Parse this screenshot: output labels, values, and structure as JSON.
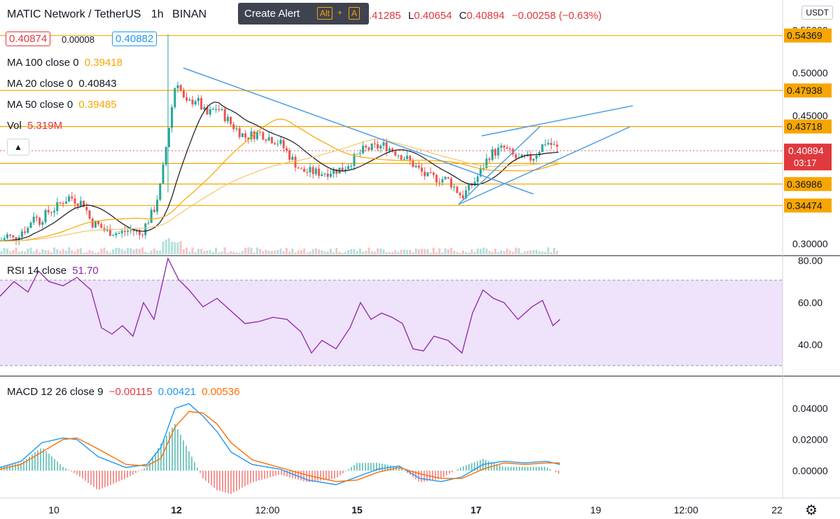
{
  "header": {
    "symbol": "MATIC Network / TetherUS",
    "interval": "1h",
    "exchange": "BINAN",
    "ohlc_visible": ".41285",
    "low_label": "L",
    "low_value": "0.40654",
    "close_label": "C",
    "close_value": "0.40894",
    "change": "−0.00258 (−0.63%)",
    "bid": "0.40874",
    "spread": "0.00008",
    "ask": "0.40882"
  },
  "toolbar": {
    "create_alert": "Create Alert",
    "shortcut_key1": "Alt",
    "shortcut_plus": "+",
    "shortcut_key2": "A",
    "currency": "USDT",
    "collapse_icon": "chevron-up-icon",
    "settings_icon": "gear-icon"
  },
  "indicators": {
    "ma100": {
      "label": "MA 100 close 0",
      "value": "0.39418",
      "color": "#f7a600"
    },
    "ma20": {
      "label": "MA 20 close 0",
      "value": "0.40843",
      "color": "#131722"
    },
    "ma50": {
      "label": "MA 50 close 0",
      "value": "0.39485",
      "color": "#f7a600"
    },
    "vol": {
      "label": "Vol",
      "value": "5.319M",
      "color": "#e0393e"
    },
    "rsi": {
      "label": "RSI 14 close",
      "value": "51.70",
      "color": "#8e24aa"
    },
    "macd": {
      "label": "MACD 12 26 close 9",
      "hist": "−0.00115",
      "macd": "0.00421",
      "signal": "0.00536"
    }
  },
  "colors": {
    "up": "#26a69a",
    "down": "#ef5350",
    "level": "#f7a600",
    "trendline": "#4e9ee2",
    "rsi_band": "#efe2fb",
    "macd_line": "#2196f3",
    "signal_line": "#ff6d00"
  },
  "price_axis": {
    "ticks": [
      "0.55000",
      "0.50000",
      "0.45000",
      "0.30000"
    ],
    "levels": [
      "0.54369",
      "0.47938",
      "0.43718",
      "0.39397",
      "0.36986",
      "0.34474"
    ],
    "current": {
      "price": "0.40894",
      "countdown": "03:17"
    }
  },
  "rsi_axis": {
    "ticks": [
      "80.00",
      "60.00",
      "40.00"
    ]
  },
  "macd_axis": {
    "ticks": [
      "0.04000",
      "0.02000",
      "0.00000"
    ]
  },
  "time_axis": {
    "labels": [
      "10",
      "12",
      "12:00",
      "15",
      "17",
      "19",
      "12:00",
      "22"
    ],
    "bold": [
      "12",
      "15",
      "17"
    ]
  },
  "chart_data": [
    {
      "type": "candlestick",
      "pair": "MATIC Network / TetherUS",
      "price_range": [
        0.28,
        0.56
      ],
      "x": [
        0,
        10,
        20,
        30,
        40,
        48,
        50,
        55,
        60,
        70,
        80,
        90,
        100,
        110,
        120,
        130,
        140,
        150,
        160,
        170,
        180,
        190,
        200,
        210,
        220,
        230,
        240,
        252,
        265,
        280,
        295,
        310,
        330,
        350,
        370,
        400,
        430,
        460,
        490,
        520,
        550,
        580,
        610,
        640,
        660,
        680,
        700,
        720,
        740,
        760,
        780,
        800
      ],
      "close": [
        0.303,
        0.31,
        0.305,
        0.315,
        0.318,
        0.335,
        0.333,
        0.325,
        0.33,
        0.338,
        0.342,
        0.35,
        0.355,
        0.35,
        0.347,
        0.325,
        0.322,
        0.315,
        0.314,
        0.312,
        0.315,
        0.316,
        0.31,
        0.325,
        0.34,
        0.37,
        0.43,
        0.495,
        0.462,
        0.47,
        0.45,
        0.46,
        0.44,
        0.425,
        0.43,
        0.418,
        0.385,
        0.383,
        0.388,
        0.41,
        0.415,
        0.4,
        0.378,
        0.375,
        0.355,
        0.375,
        0.405,
        0.412,
        0.398,
        0.4,
        0.42,
        0.409
      ],
      "levels": [
        0.54369,
        0.47938,
        0.43718,
        0.39397,
        0.36986,
        0.34474
      ],
      "current_price": 0.40894
    },
    {
      "type": "line",
      "name": "RSI 14 close",
      "range": [
        22,
        82
      ],
      "bands": [
        30,
        70
      ],
      "x": [
        0,
        20,
        40,
        55,
        70,
        90,
        110,
        130,
        145,
        160,
        175,
        190,
        205,
        220,
        240,
        255,
        270,
        290,
        310,
        330,
        350,
        370,
        390,
        410,
        430,
        445,
        460,
        480,
        500,
        515,
        530,
        545,
        560,
        575,
        590,
        605,
        620,
        640,
        660,
        675,
        690,
        705,
        720,
        740,
        760,
        775,
        790,
        800
      ],
      "values": [
        63,
        70,
        65,
        75,
        70,
        68,
        72,
        66,
        48,
        45,
        49,
        44,
        60,
        52,
        81,
        71,
        66,
        58,
        62,
        56,
        50,
        51,
        53,
        52,
        46,
        36,
        42,
        38,
        48,
        60,
        52,
        55,
        53,
        50,
        38,
        37,
        44,
        42,
        36,
        55,
        66,
        62,
        60,
        52,
        58,
        61,
        49,
        52
      ]
    },
    {
      "type": "line",
      "name": "MACD 12 26 close 9",
      "range": [
        -0.01,
        0.05
      ],
      "x": [
        0,
        30,
        60,
        90,
        110,
        140,
        180,
        210,
        230,
        250,
        270,
        290,
        310,
        330,
        360,
        400,
        440,
        480,
        510,
        540,
        570,
        600,
        630,
        660,
        690,
        720,
        750,
        780,
        800
      ],
      "macd": [
        0.002,
        0.006,
        0.018,
        0.021,
        0.02,
        0.009,
        0.002,
        0.004,
        0.015,
        0.04,
        0.043,
        0.035,
        0.025,
        0.012,
        0.004,
        0.001,
        -0.006,
        -0.009,
        -0.004,
        0.001,
        0.003,
        -0.005,
        -0.007,
        -0.004,
        0.004,
        0.006,
        0.005,
        0.006,
        0.004
      ],
      "signal": [
        0.001,
        0.004,
        0.012,
        0.02,
        0.021,
        0.014,
        0.004,
        0.003,
        0.008,
        0.028,
        0.038,
        0.037,
        0.03,
        0.018,
        0.007,
        0.002,
        -0.003,
        -0.007,
        -0.006,
        -0.001,
        0.002,
        -0.002,
        -0.005,
        -0.005,
        0.001,
        0.005,
        0.004,
        0.005,
        0.005
      ]
    }
  ]
}
